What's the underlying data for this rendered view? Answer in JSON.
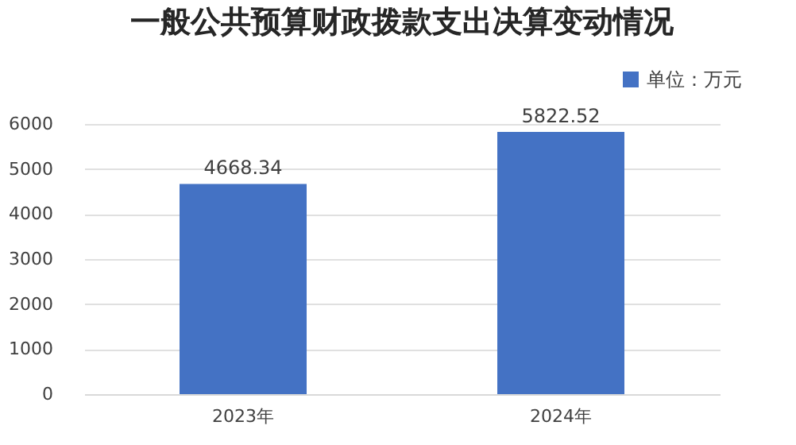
{
  "chart_data": {
    "type": "bar",
    "title": "一般公共预算财政拨款支出决算变动情况",
    "categories": [
      "2023年",
      "2024年"
    ],
    "series": [
      {
        "name": "单位：万元",
        "color": "#4472c4",
        "values": [
          4668.34,
          5822.52
        ]
      }
    ],
    "ylim": [
      0,
      6000
    ],
    "yticks": [
      0,
      1000,
      2000,
      3000,
      4000,
      5000,
      6000
    ],
    "grid": "y",
    "legend": "top right",
    "data_labels": true
  }
}
